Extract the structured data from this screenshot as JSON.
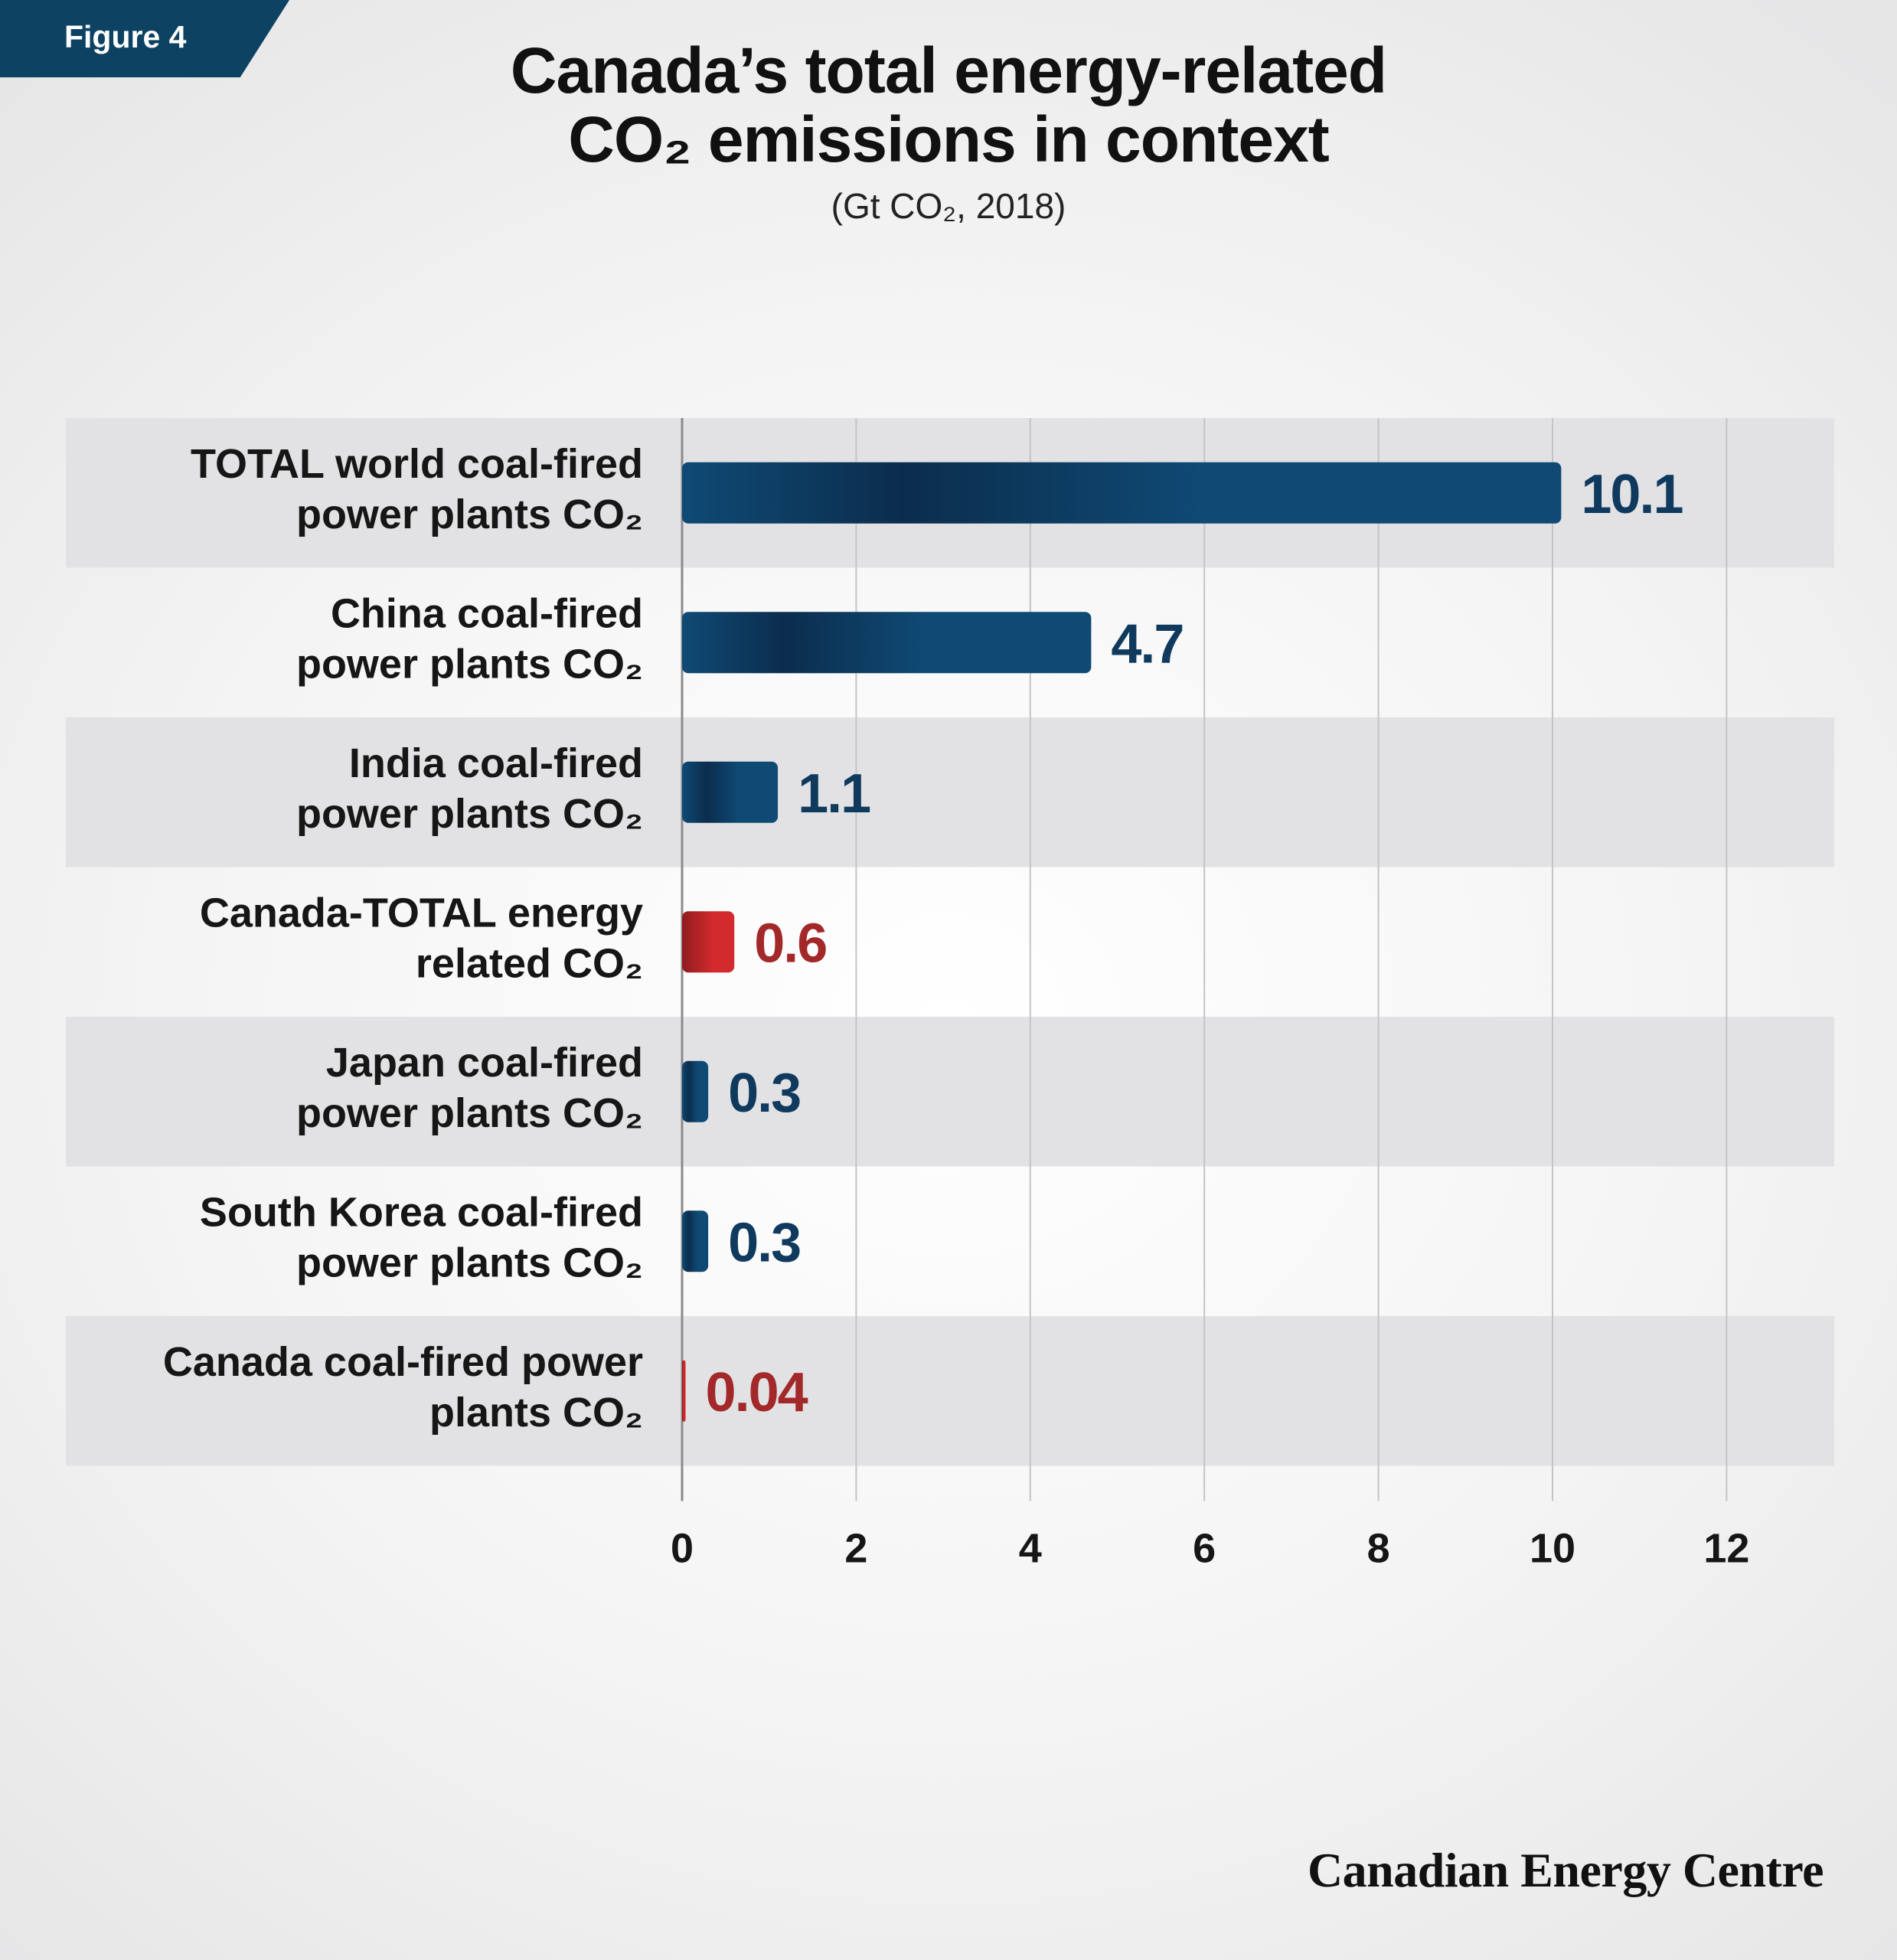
{
  "figure_label": "Figure 4",
  "title_line1": "Canada’s total energy-related",
  "title_line2": "CO₂ emissions in context",
  "subtitle": "(Gt CO₂, 2018)",
  "brand": "Canadian Energy Centre",
  "colors": {
    "blue_dark": "#0b2d4d",
    "blue_light": "#0f4a75",
    "red_dark": "#8f1c1f",
    "red_light": "#d32a2d",
    "row_shade": "#e2e2e4",
    "value_blue": "#0f3a5e",
    "value_red": "#a3282a"
  },
  "chart_data": {
    "type": "bar",
    "orientation": "horizontal",
    "title": "Canada’s total energy-related CO₂ emissions in context",
    "subtitle": "(Gt CO₂, 2018)",
    "categories": [
      [
        "TOTAL world coal-fired",
        "power plants CO₂"
      ],
      [
        "China coal-fired",
        "power plants CO₂"
      ],
      [
        "India coal-fired",
        "power plants CO₂"
      ],
      [
        "Canada-TOTAL energy",
        "related CO₂"
      ],
      [
        "Japan coal-fired",
        "power plants CO₂"
      ],
      [
        "South Korea coal-fired",
        "power plants CO₂"
      ],
      [
        "Canada coal-fired power",
        "plants CO₂"
      ]
    ],
    "values": [
      10.1,
      4.7,
      1.1,
      0.6,
      0.3,
      0.3,
      0.04
    ],
    "value_labels": [
      "10.1",
      "4.7",
      "1.1",
      "0.6",
      "0.3",
      "0.3",
      "0.04"
    ],
    "highlight": [
      false,
      false,
      false,
      true,
      false,
      false,
      true
    ],
    "xlim": [
      0,
      12
    ],
    "xticks": [
      "0",
      "2",
      "4",
      "6",
      "8",
      "10",
      "12"
    ],
    "grid": true,
    "xlabel": "",
    "ylabel": ""
  }
}
